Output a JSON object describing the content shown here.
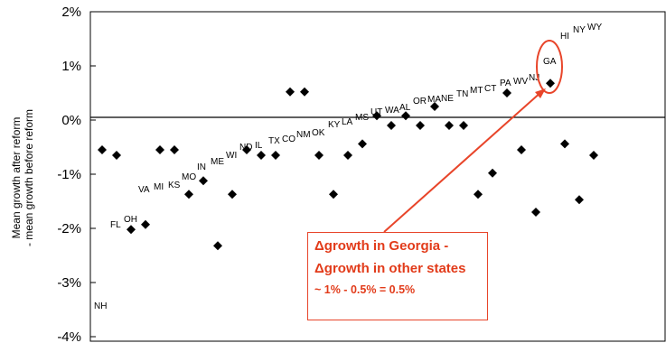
{
  "chart_data": {
    "type": "scatter",
    "ylabel_lines": [
      "Mean growth after reform",
      "- mean growth before reform"
    ],
    "y_ticks": [
      "2%",
      "1%",
      "0%",
      "-1%",
      "-2%",
      "-3%",
      "-4%"
    ],
    "ylim": [
      -4,
      2
    ],
    "zero_line": true,
    "points": [
      {
        "label": "NH",
        "x": 1,
        "y": -0.55
      },
      {
        "label": "FL",
        "x": 2,
        "y": -0.65
      },
      {
        "label": "OH",
        "x": 3,
        "y": -2.02
      },
      {
        "label": "",
        "x": 4,
        "y": -1.93
      },
      {
        "label": "VA",
        "x": 5,
        "y": -0.55
      },
      {
        "label": "MI",
        "x": 6,
        "y": -0.55
      },
      {
        "label": "KS",
        "x": 7,
        "y": -1.37
      },
      {
        "label": "MO",
        "x": 8,
        "y": -1.12
      },
      {
        "label": "IN",
        "x": 9,
        "y": -2.32
      },
      {
        "label": "ME",
        "x": 10,
        "y": -1.37
      },
      {
        "label": "WI",
        "x": 11,
        "y": -0.55
      },
      {
        "label": "ND",
        "x": 12,
        "y": -0.65
      },
      {
        "label": "IL",
        "x": 13,
        "y": -0.65
      },
      {
        "label": "TX",
        "x": 14,
        "y": 0.52
      },
      {
        "label": "CO",
        "x": 15,
        "y": 0.52
      },
      {
        "label": "NM",
        "x": 16,
        "y": -0.65
      },
      {
        "label": "OK",
        "x": 17,
        "y": -1.37
      },
      {
        "label": "KY",
        "x": 18,
        "y": -0.65
      },
      {
        "label": "LA",
        "x": 19,
        "y": -0.44
      },
      {
        "label": "MS",
        "x": 20,
        "y": 0.08
      },
      {
        "label": "UT",
        "x": 21,
        "y": -0.1
      },
      {
        "label": "WA",
        "x": 22,
        "y": 0.08
      },
      {
        "label": "AL",
        "x": 23,
        "y": -0.1
      },
      {
        "label": "OR",
        "x": 24,
        "y": 0.25
      },
      {
        "label": "MA",
        "x": 25,
        "y": -0.1
      },
      {
        "label": "NE",
        "x": 26,
        "y": -0.1
      },
      {
        "label": "TN",
        "x": 27,
        "y": -1.37
      },
      {
        "label": "MT",
        "x": 28,
        "y": -0.98
      },
      {
        "label": "CT",
        "x": 29,
        "y": 0.5
      },
      {
        "label": "PA",
        "x": 30,
        "y": -0.55
      },
      {
        "label": "WV",
        "x": 31,
        "y": -1.7
      },
      {
        "label": "NJ",
        "x": 32,
        "y": 0.68
      },
      {
        "label": "GA",
        "x": 33,
        "y": -0.44
      },
      {
        "label": "HI",
        "x": 34,
        "y": -1.47
      },
      {
        "label": "NY",
        "x": 35,
        "y": -0.65
      },
      {
        "label": "WY",
        "x": 36,
        "y": null
      }
    ],
    "highlight": "GA",
    "annotation": {
      "line1": "Δgrowth in Georgia -",
      "line2": "Δgrowth in other states",
      "line3": "~ 1% - 0.5% = 0.5%"
    }
  }
}
